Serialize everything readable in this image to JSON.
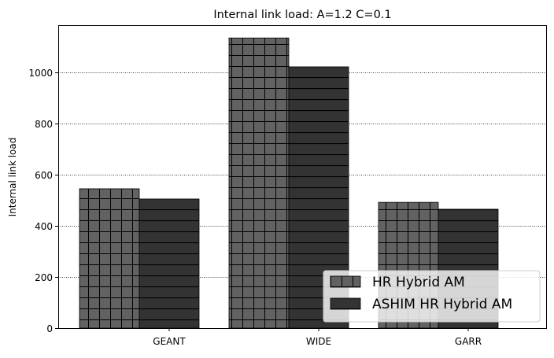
{
  "chart_data": {
    "type": "bar",
    "title": "Internal link load: A=1.2 C=0.1",
    "xlabel": "",
    "ylabel": "Internal link load",
    "categories": [
      "GEANT",
      "WIDE",
      "GARR"
    ],
    "series": [
      {
        "name": "HR Hybrid AM",
        "values": [
          545,
          1135,
          492
        ],
        "color": "#626262",
        "hatch": "grid"
      },
      {
        "name": "ASHIM HR Hybrid AM",
        "values": [
          505,
          1022,
          465
        ],
        "color": "#333333",
        "hatch": "horizontal"
      }
    ],
    "ylim": [
      0,
      1185
    ],
    "yticks": [
      0,
      200,
      400,
      600,
      800,
      1000
    ],
    "grid": {
      "axis": "y",
      "style": "dotted"
    },
    "legend": {
      "position": "bottom-right"
    }
  }
}
